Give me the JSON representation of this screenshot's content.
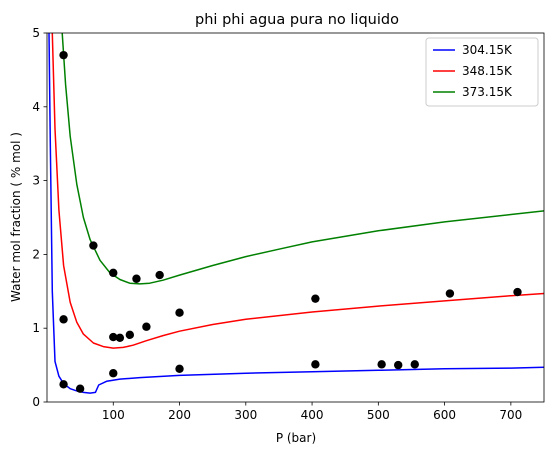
{
  "chart_data": {
    "type": "line",
    "title": "phi phi agua pura no liquido",
    "xlabel": "P (bar)",
    "ylabel": "Water mol fraction ( % mol )",
    "xlim": [
      0,
      750
    ],
    "ylim": [
      0,
      5
    ],
    "xticks": [
      100,
      200,
      300,
      400,
      500,
      600,
      700
    ],
    "yticks": [
      0,
      1,
      2,
      3,
      4,
      5
    ],
    "grid": false,
    "legend_position": "top-right",
    "series": [
      {
        "name": "304.15K",
        "color": "#0000ff",
        "points": [
          [
            3,
            5.0
          ],
          [
            5,
            3.5
          ],
          [
            8,
            1.5
          ],
          [
            12,
            0.55
          ],
          [
            18,
            0.35
          ],
          [
            25,
            0.25
          ],
          [
            35,
            0.18
          ],
          [
            45,
            0.15
          ],
          [
            55,
            0.13
          ],
          [
            65,
            0.12
          ],
          [
            73,
            0.13
          ],
          [
            78,
            0.23
          ],
          [
            90,
            0.28
          ],
          [
            110,
            0.31
          ],
          [
            140,
            0.33
          ],
          [
            200,
            0.36
          ],
          [
            300,
            0.39
          ],
          [
            400,
            0.41
          ],
          [
            500,
            0.43
          ],
          [
            600,
            0.45
          ],
          [
            700,
            0.46
          ],
          [
            750,
            0.47
          ]
        ]
      },
      {
        "name": "348.15K",
        "color": "#ff0000",
        "points": [
          [
            8,
            5.0
          ],
          [
            12,
            3.7
          ],
          [
            18,
            2.6
          ],
          [
            25,
            1.85
          ],
          [
            35,
            1.35
          ],
          [
            45,
            1.08
          ],
          [
            55,
            0.92
          ],
          [
            70,
            0.8
          ],
          [
            85,
            0.75
          ],
          [
            100,
            0.73
          ],
          [
            115,
            0.74
          ],
          [
            130,
            0.77
          ],
          [
            150,
            0.83
          ],
          [
            175,
            0.9
          ],
          [
            200,
            0.96
          ],
          [
            250,
            1.05
          ],
          [
            300,
            1.12
          ],
          [
            400,
            1.22
          ],
          [
            500,
            1.3
          ],
          [
            600,
            1.37
          ],
          [
            700,
            1.44
          ],
          [
            750,
            1.47
          ]
        ]
      },
      {
        "name": "373.15K",
        "color": "#008000",
        "points": [
          [
            23,
            5.0
          ],
          [
            28,
            4.3
          ],
          [
            35,
            3.6
          ],
          [
            45,
            2.95
          ],
          [
            55,
            2.5
          ],
          [
            65,
            2.2
          ],
          [
            80,
            1.92
          ],
          [
            95,
            1.75
          ],
          [
            110,
            1.66
          ],
          [
            125,
            1.61
          ],
          [
            140,
            1.6
          ],
          [
            155,
            1.61
          ],
          [
            175,
            1.65
          ],
          [
            200,
            1.72
          ],
          [
            250,
            1.85
          ],
          [
            300,
            1.97
          ],
          [
            350,
            2.07
          ],
          [
            400,
            2.17
          ],
          [
            500,
            2.32
          ],
          [
            600,
            2.44
          ],
          [
            700,
            2.54
          ],
          [
            750,
            2.59
          ]
        ]
      }
    ],
    "scatter": {
      "color": "#000000",
      "points": [
        [
          25,
          4.7
        ],
        [
          25,
          1.12
        ],
        [
          25,
          0.24
        ],
        [
          50,
          0.18
        ],
        [
          70,
          2.12
        ],
        [
          100,
          1.75
        ],
        [
          100,
          0.88
        ],
        [
          100,
          0.39
        ],
        [
          110,
          0.87
        ],
        [
          125,
          0.91
        ],
        [
          135,
          1.67
        ],
        [
          150,
          1.02
        ],
        [
          170,
          1.72
        ],
        [
          200,
          1.21
        ],
        [
          200,
          0.45
        ],
        [
          405,
          1.4
        ],
        [
          405,
          0.51
        ],
        [
          505,
          0.51
        ],
        [
          530,
          0.5
        ],
        [
          555,
          0.51
        ],
        [
          608,
          1.47
        ],
        [
          710,
          1.49
        ]
      ]
    }
  }
}
